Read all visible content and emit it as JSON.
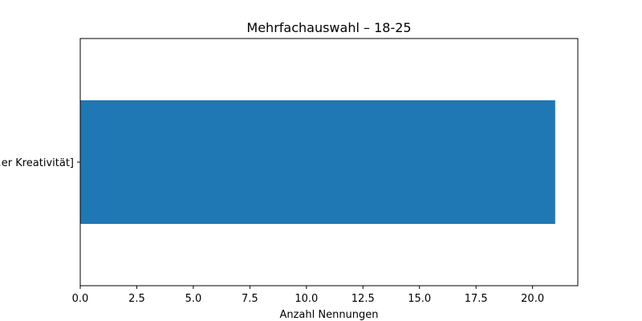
{
  "chart_data": {
    "type": "bar",
    "orientation": "horizontal",
    "title": "Mehrfachauswahl – 18-25",
    "xlabel": "Anzahl Nennungen",
    "ylabel": "",
    "categories": [
      "…er Kreativität]"
    ],
    "values": [
      21
    ],
    "xlim": [
      0,
      22
    ],
    "xticks": [
      "0.0",
      "2.5",
      "5.0",
      "7.5",
      "10.0",
      "12.5",
      "15.0",
      "17.5",
      "20.0"
    ],
    "grid": false,
    "legend": "none",
    "colors": {
      "bar": "#1f77b4",
      "axis": "#000000",
      "background": "#ffffff"
    }
  }
}
